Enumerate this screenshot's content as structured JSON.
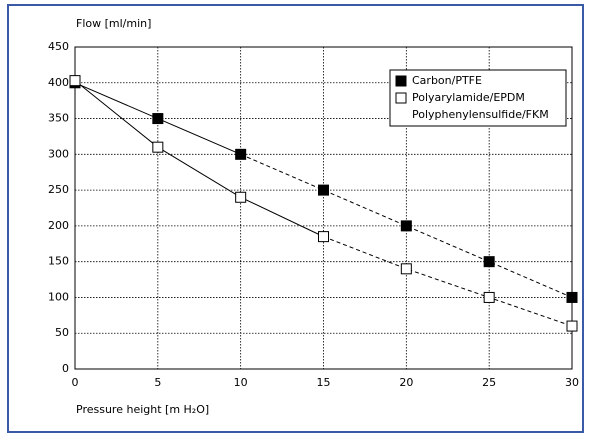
{
  "chart_data": {
    "type": "line",
    "ylabel": "Flow [ml/min]",
    "xlabel": "Pressure height [m H₂O]",
    "x": [
      0,
      5,
      10,
      15,
      20,
      25,
      30
    ],
    "series": [
      {
        "name": "Carbon/PTFE",
        "color": "#000000",
        "marker": "filled-square",
        "dashed_from": 10,
        "values": [
          400,
          350,
          300,
          250,
          200,
          150,
          100
        ]
      },
      {
        "name": "Polyarylamide/EPDM",
        "color": "#000000",
        "marker": "open-square",
        "dashed_from": 15,
        "values": [
          403,
          310,
          240,
          185,
          140,
          100,
          60
        ]
      }
    ],
    "legend_note": "Polyphenylensulfide/FKM",
    "xlim": [
      0,
      30
    ],
    "xticks": [
      0,
      5,
      10,
      15,
      20,
      25,
      30
    ],
    "ylim": [
      0,
      450
    ],
    "yticks": [
      0,
      50,
      100,
      150,
      200,
      250,
      300,
      350,
      400,
      450
    ],
    "grid": true,
    "legend": "upper right"
  }
}
